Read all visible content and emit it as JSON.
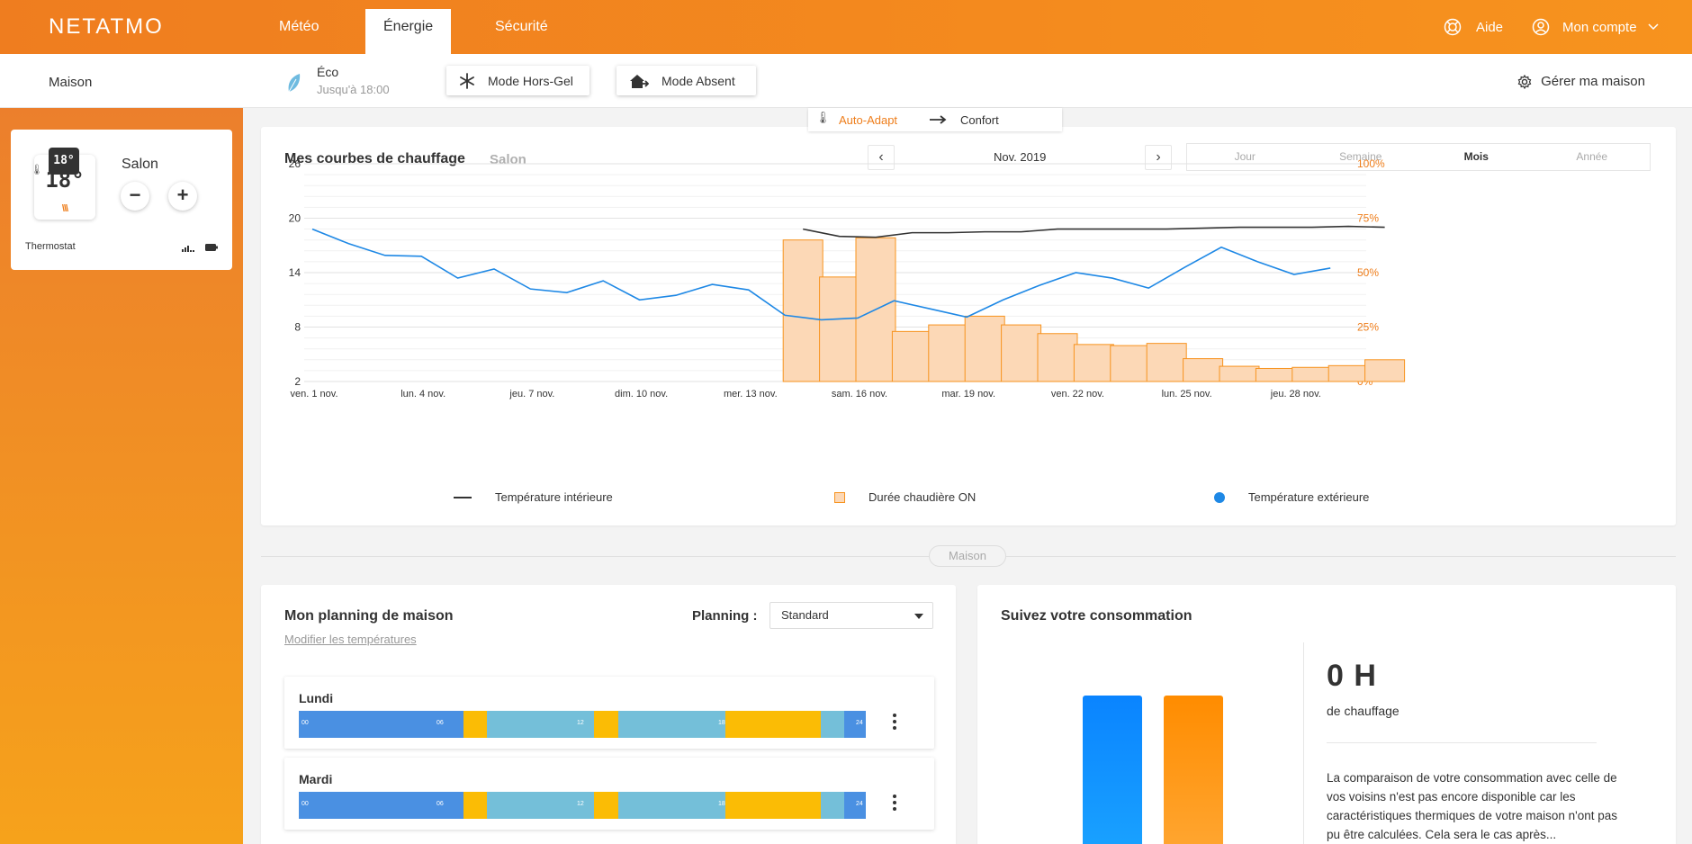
{
  "nav": {
    "logo": "NETATMO",
    "tabs": [
      {
        "label": "Météo"
      },
      {
        "label": "Énergie"
      },
      {
        "label": "Sécurité"
      }
    ],
    "help": "Aide",
    "account": "Mon compte"
  },
  "subbar": {
    "home": "Maison",
    "mode_title": "Éco",
    "mode_until": "Jusqu'à 18:00",
    "frost_mode": "Mode Hors-Gel",
    "away_mode": "Mode Absent",
    "manage": "Gérer ma maison"
  },
  "sidebar": {
    "room": "Salon",
    "device": "Thermostat",
    "setpoint": "18°",
    "display_small": "18°"
  },
  "mode_dropdown": {
    "auto_adapt": "Auto-Adapt",
    "confort": "Confort"
  },
  "chart_card": {
    "title": "Mes courbes de chauffage",
    "room": "Salon",
    "month": "Nov. 2019",
    "periods": [
      "Jour",
      "Semaine",
      "Mois",
      "Année"
    ],
    "active_period": "Mois"
  },
  "chart_data": {
    "type": "bar",
    "x_tick_labels": [
      "ven. 1 nov.",
      "lun. 4 nov.",
      "jeu. 7 nov.",
      "dim. 10 nov.",
      "mer. 13 nov.",
      "sam. 16 nov.",
      "mar. 19 nov.",
      "ven. 22 nov.",
      "lun. 25 nov.",
      "jeu. 28 nov."
    ],
    "days": [
      1,
      2,
      3,
      4,
      5,
      6,
      7,
      8,
      9,
      10,
      11,
      12,
      13,
      14,
      15,
      16,
      17,
      18,
      19,
      20,
      21,
      22,
      23,
      24,
      25,
      26,
      27,
      28,
      29,
      30
    ],
    "y_left": {
      "ylim": [
        2,
        26
      ],
      "ticks": [
        "2",
        "8",
        "14",
        "20",
        "26"
      ]
    },
    "y_right": {
      "ylim": [
        0,
        100
      ],
      "ticks": [
        "0%",
        "25%",
        "50%",
        "75%",
        "100%"
      ]
    },
    "legend": [
      "Température intérieure",
      "Durée chaudière ON",
      "Température extérieure"
    ],
    "series": [
      {
        "name": "Durée chaudière ON",
        "axis": "right",
        "color": "#f7931e",
        "x": [
          14,
          15,
          16,
          17,
          18,
          19,
          20,
          21,
          22,
          23,
          24,
          25,
          26,
          27,
          28,
          29,
          30
        ],
        "values": [
          65,
          48,
          66,
          23,
          26,
          30,
          26,
          22,
          17,
          16.5,
          17.5,
          10.5,
          7,
          6,
          6.5,
          7.3,
          10
        ]
      },
      {
        "name": "Température intérieure",
        "axis": "left",
        "color": "#333333",
        "x": [
          14,
          15,
          16,
          17,
          18,
          19,
          20,
          21,
          22,
          23,
          24,
          25,
          26,
          27,
          28,
          29,
          30
        ],
        "values": [
          18.8,
          18.0,
          17.9,
          18.4,
          18.4,
          18.5,
          18.5,
          18.8,
          18.8,
          18.8,
          18.8,
          18.9,
          19.0,
          19.0,
          19.0,
          19.1,
          19.0
        ]
      },
      {
        "name": "Température extérieure",
        "axis": "left",
        "color": "#1e88e5",
        "x": [
          1,
          2,
          3,
          4,
          5,
          6,
          7,
          8,
          9,
          10,
          11,
          12,
          13,
          14,
          15,
          16,
          17,
          18,
          19,
          20,
          21,
          22,
          23,
          24,
          25,
          26,
          27,
          28,
          29
        ],
        "values": [
          18.8,
          17.2,
          15.9,
          15.8,
          13.4,
          14.4,
          12.2,
          11.8,
          13.1,
          11.0,
          11.5,
          12.7,
          12.1,
          9.3,
          8.8,
          9.0,
          10.9,
          10.0,
          9.1,
          11.0,
          12.6,
          14.0,
          13.4,
          12.3,
          14.6,
          16.8,
          15.2,
          13.8,
          14.5
        ]
      }
    ]
  },
  "divider": "Maison",
  "planning": {
    "title": "Mon planning de maison",
    "edit_link": "Modifier les températures",
    "label": "Planning :",
    "selected": "Standard",
    "days": [
      {
        "name": "Lundi"
      },
      {
        "name": "Mardi"
      }
    ],
    "hour_labels": [
      "00",
      "06",
      "12",
      "18",
      "24"
    ],
    "segment_colors": {
      "night": "#4a90e2",
      "comfort": "#fbbc05",
      "eco": "#74bfd9"
    }
  },
  "consumption": {
    "title": "Suivez votre consommation",
    "value": "0 H",
    "unit": "de chauffage",
    "text": "La comparaison de votre consommation avec celle de vos voisins n'est pas encore disponible car les caractéristiques thermiques de votre maison n'ont pas pu être calculées. Cela sera le cas après..."
  }
}
